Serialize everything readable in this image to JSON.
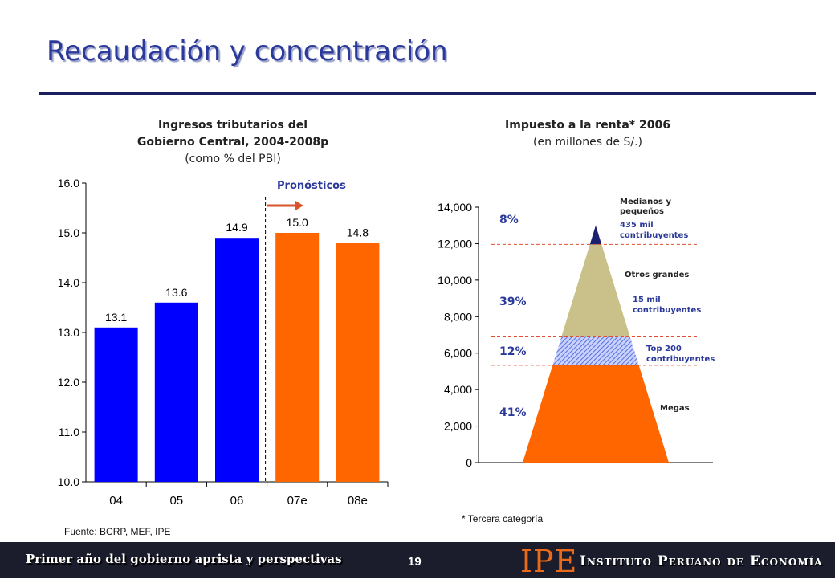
{
  "slide": {
    "title": "Recaudación y concentración",
    "page_number": "19",
    "footer_text": "Primer año del gobierno aprista y perspectivas",
    "logo_abbr": "IPE",
    "logo_name": "Instituto Peruano de Economía"
  },
  "left_chart": {
    "title_line1": "Ingresos tributarios del",
    "title_line2": "Gobierno Central, 2004-2008p",
    "subtitle": "(como % del PBI)",
    "forecast_label": "Pronósticos",
    "source": "Fuente: BCRP, MEF, IPE"
  },
  "right_chart": {
    "title": "Impuesto a la renta* 2006",
    "subtitle": "(en millones de S/.)",
    "footnote": "* Tercera categoría"
  },
  "colors": {
    "actual": "#0000ff",
    "forecast": "#ff6600",
    "title": "#2b3a9a",
    "megas": "#ff6600",
    "top200": "#5a6fd8",
    "otros_grandes": "#c9c08a",
    "medianos": "#1a1f6e",
    "percent_text": "#2b3a9a",
    "dashed_line": "#e05030"
  },
  "chart_data": [
    {
      "type": "bar",
      "categories": [
        "04",
        "05",
        "06",
        "07e",
        "08e"
      ],
      "values": [
        13.1,
        13.6,
        14.9,
        15.0,
        14.8
      ],
      "value_labels": [
        "13.1",
        "13.6",
        "14.9",
        "15.0",
        "14.8"
      ],
      "forecast": [
        false,
        false,
        false,
        true,
        true
      ],
      "ylim": [
        10.0,
        16.0
      ],
      "yticks": [
        "10.0",
        "11.0",
        "12.0",
        "13.0",
        "14.0",
        "15.0",
        "16.0"
      ],
      "title": "Ingresos tributarios del Gobierno Central, 2004-2008p",
      "grid": false
    },
    {
      "type": "area",
      "title": "Impuesto a la renta* 2006",
      "ylim": [
        0,
        14000
      ],
      "yticks": [
        "0",
        "2,000",
        "4,000",
        "6,000",
        "8,000",
        "10,000",
        "12,000",
        "14,000"
      ],
      "total": 13000,
      "segments": [
        {
          "name": "Megas",
          "from": 0,
          "to": 5330,
          "percent": "41%",
          "note": ""
        },
        {
          "name": "Top 200",
          "from": 5330,
          "to": 6890,
          "percent": "12%",
          "note": "contribuyentes"
        },
        {
          "name": "Otros grandes",
          "from": 6890,
          "to": 11960,
          "percent": "39%",
          "note": "15 mil contribuyentes"
        },
        {
          "name": "Medianos y pequeños",
          "from": 11960,
          "to": 13000,
          "percent": "8%",
          "note": "435 mil contribuyentes"
        }
      ],
      "grid": false
    }
  ]
}
